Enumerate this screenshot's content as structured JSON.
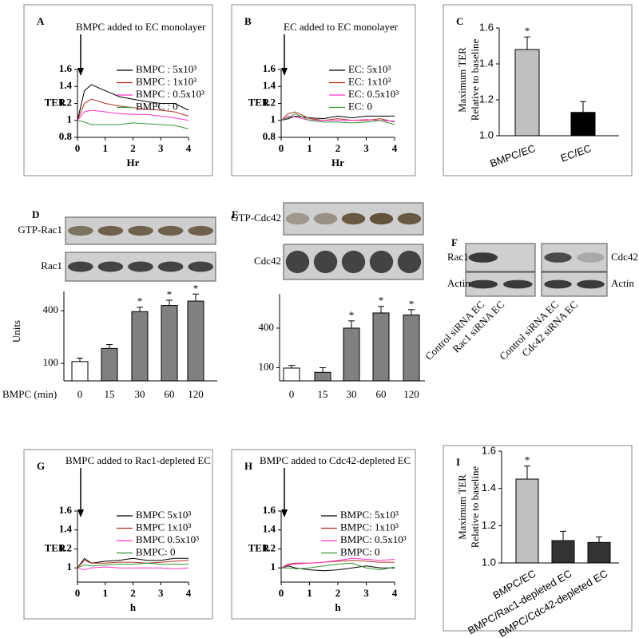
{
  "chart_data": [
    {
      "type": "line",
      "panel": "A",
      "annotation": "BMPC added to EC monolayer",
      "xlabel": "Hr",
      "ylabel": "TER",
      "x": [
        0,
        0.25,
        0.5,
        1,
        1.5,
        2,
        2.5,
        3,
        3.5,
        4
      ],
      "xlim": [
        0,
        4
      ],
      "xticks": [
        0,
        1,
        2,
        3,
        4
      ],
      "ylim": [
        0.8,
        1.6
      ],
      "yticks": [
        0.8,
        1,
        1.2,
        1.4,
        1.6
      ],
      "series": [
        {
          "name": "BMPC : 5x10³",
          "color": "#000000",
          "values": [
            1,
            1.35,
            1.42,
            1.35,
            1.28,
            1.25,
            1.22,
            1.2,
            1.2,
            1.12
          ]
        },
        {
          "name": "BMPC : 1x10³",
          "color": "#b03020",
          "values": [
            1,
            1.2,
            1.25,
            1.2,
            1.17,
            1.15,
            1.13,
            1.12,
            1.1,
            1.05
          ]
        },
        {
          "name": "BMPC : 0.5x10³",
          "color": "#ff33cc",
          "values": [
            1,
            1.1,
            1.12,
            1.1,
            1.08,
            1.07,
            1.07,
            1.05,
            1.03,
            1.0
          ]
        },
        {
          "name": "BMPC : 0",
          "color": "#339933",
          "values": [
            1,
            0.98,
            0.95,
            0.95,
            0.95,
            0.97,
            0.96,
            0.95,
            0.94,
            0.9
          ]
        }
      ]
    },
    {
      "type": "line",
      "panel": "B",
      "annotation": "EC added to EC monolayer",
      "xlabel": "Hr",
      "ylabel": "TER",
      "x": [
        0,
        0.25,
        0.5,
        1,
        1.5,
        2,
        2.5,
        3,
        3.5,
        4
      ],
      "xlim": [
        0,
        4
      ],
      "xticks": [
        0,
        1,
        2,
        3,
        4
      ],
      "ylim": [
        0.8,
        1.6
      ],
      "yticks": [
        0.8,
        1,
        1.2,
        1.4,
        1.6
      ],
      "series": [
        {
          "name": "EC: 5x10³",
          "color": "#000000",
          "values": [
            1,
            1.02,
            1.05,
            1.03,
            1.02,
            1.05,
            1.03,
            1.05,
            1.05,
            1.05
          ]
        },
        {
          "name": "EC: 1x10³",
          "color": "#b03020",
          "values": [
            1,
            1.08,
            1.1,
            1.02,
            1.0,
            1.02,
            1.0,
            1.0,
            1.02,
            0.98
          ]
        },
        {
          "name": "EC: 0.5x10³",
          "color": "#ff33cc",
          "values": [
            1,
            1.05,
            1.04,
            1.0,
            1.0,
            1.0,
            1.0,
            1.01,
            1.0,
            0.99
          ]
        },
        {
          "name": "EC: 0",
          "color": "#339933",
          "values": [
            1,
            1.03,
            1.08,
            1.0,
            0.98,
            0.98,
            0.97,
            0.98,
            1.0,
            0.95
          ]
        }
      ]
    },
    {
      "type": "bar",
      "panel": "C",
      "ylabel": [
        "Maximum TER",
        "Relative to baseline"
      ],
      "categories": [
        "BMPC/EC",
        "EC/EC"
      ],
      "values": [
        1.48,
        1.13
      ],
      "errors": [
        0.07,
        0.06
      ],
      "colors": [
        "#c0c0c0",
        "#000000"
      ],
      "significance": [
        "*",
        null
      ],
      "ylim": [
        1.0,
        1.6
      ],
      "yticks": [
        {
          "value": 1.0,
          "label": "1.0"
        },
        1.2,
        1.4,
        1.6
      ]
    },
    {
      "type": "bar",
      "panel": "D",
      "blot_labels": [
        "GTP-Rac1",
        "Rac1"
      ],
      "ylabel": "Units",
      "xlabel": "BMPC (min)",
      "categories": [
        "0",
        "15",
        "30",
        "60",
        "120"
      ],
      "values": [
        110,
        185,
        395,
        430,
        455
      ],
      "errors": [
        20,
        22,
        25,
        30,
        40
      ],
      "colors": [
        "#ffffff",
        "#808080",
        "#808080",
        "#808080",
        "#808080"
      ],
      "significance": [
        null,
        null,
        "*",
        "*",
        "*"
      ],
      "ylim": [
        0,
        510
      ],
      "yticks": [
        100,
        400
      ]
    },
    {
      "type": "bar",
      "panel": "E",
      "blot_labels": [
        "GTP-Cdc42",
        "Cdc42"
      ],
      "categories": [
        "0",
        "15",
        "30",
        "60",
        "120"
      ],
      "values": [
        97,
        65,
        400,
        515,
        500
      ],
      "errors": [
        20,
        35,
        55,
        50,
        40
      ],
      "colors": [
        "#ffffff",
        "#808080",
        "#808080",
        "#808080",
        "#808080"
      ],
      "significance": [
        null,
        null,
        "*",
        "*",
        "*"
      ],
      "ylim": [
        0,
        660
      ],
      "yticks": [
        100,
        400
      ]
    },
    {
      "type": "line",
      "panel": "G",
      "annotation": "BMPC added to Rac1-depleted EC",
      "xlabel": "h",
      "ylabel": "TER",
      "x": [
        0,
        0.25,
        0.5,
        1,
        1.5,
        2,
        2.5,
        3,
        3.5,
        4
      ],
      "xlim": [
        0,
        4
      ],
      "xticks": [
        0,
        1,
        2,
        3,
        4
      ],
      "ylim": [
        0.85,
        1.6
      ],
      "yticks": [
        1,
        1.2,
        1.4,
        1.6
      ],
      "series": [
        {
          "name": "BMPC 5x10³",
          "color": "#000000",
          "values": [
            1,
            1.1,
            1.05,
            1.07,
            1.08,
            1.1,
            1.08,
            1.08,
            1.1,
            1.1
          ]
        },
        {
          "name": "BMPC 1x10³",
          "color": "#b03020",
          "values": [
            1,
            1.08,
            1.05,
            1.05,
            1.06,
            1.06,
            1.05,
            1.06,
            1.07,
            1.08
          ]
        },
        {
          "name": "BMPC 0.5x10³",
          "color": "#ff33cc",
          "values": [
            1,
            0.98,
            1.0,
            1.01,
            1.0,
            1.0,
            1.0,
            1.0,
            0.99,
            1.0
          ]
        },
        {
          "name": "BMPC: 0",
          "color": "#339933",
          "values": [
            1,
            1.03,
            1.02,
            1.03,
            1.04,
            1.04,
            1.05,
            1.04,
            1.04,
            1.04
          ]
        }
      ]
    },
    {
      "type": "line",
      "panel": "H",
      "annotation": "BMPC added to Cdc42-depleted EC",
      "xlabel": "h",
      "ylabel": "TER",
      "x": [
        0,
        0.25,
        0.5,
        1,
        1.5,
        2,
        2.5,
        3,
        3.5,
        4
      ],
      "xlim": [
        0,
        4
      ],
      "xticks": [
        0,
        1,
        2,
        3,
        4
      ],
      "ylim": [
        0.85,
        1.6
      ],
      "yticks": [
        1,
        1.2,
        1.4,
        1.6
      ],
      "series": [
        {
          "name": "BMPC: 5x10³",
          "color": "#000000",
          "values": [
            1,
            1.02,
            1.0,
            0.98,
            0.97,
            0.98,
            1.0,
            1.02,
            1.0,
            1.0
          ]
        },
        {
          "name": "BMPC: 1x10³",
          "color": "#b03020",
          "values": [
            1,
            1.04,
            1.05,
            1.05,
            1.06,
            1.07,
            1.08,
            1.07,
            1.06,
            1.06
          ]
        },
        {
          "name": "BMPC: 0.5x10³",
          "color": "#ff33cc",
          "values": [
            1,
            1.03,
            1.04,
            1.05,
            1.06,
            1.08,
            1.1,
            1.09,
            1.08,
            1.09
          ]
        },
        {
          "name": "BMPC: 0",
          "color": "#339933",
          "values": [
            1,
            1.0,
            0.99,
            1.0,
            1.02,
            1.04,
            1.05,
            1.0,
            0.98,
            1.01
          ]
        }
      ]
    },
    {
      "type": "bar",
      "panel": "I",
      "ylabel": [
        "Maximum TER",
        "Relative to baseline"
      ],
      "categories": [
        "BMPC/EC",
        "BMPC/Rac1-depleted EC",
        "BMPC/Cdc42-depleted EC"
      ],
      "values": [
        1.45,
        1.12,
        1.11
      ],
      "errors": [
        0.07,
        0.05,
        0.03
      ],
      "colors": [
        "#c0c0c0",
        "#333333",
        "#333333"
      ],
      "significance": [
        "*",
        null,
        null
      ],
      "ylim": [
        1.0,
        1.6
      ],
      "yticks": [
        {
          "value": 1.0,
          "label": "1.0"
        },
        1.2,
        1.4,
        1.6
      ]
    }
  ],
  "blots": {
    "panel": "F",
    "rows": [
      "Rac1",
      "Actin",
      "Cdc42",
      "Actin"
    ],
    "lanes": [
      "Control siRNA EC",
      "Rac1 siRNA EC",
      "Control siRNA EC",
      "Cdc42 siRNA EC"
    ]
  }
}
